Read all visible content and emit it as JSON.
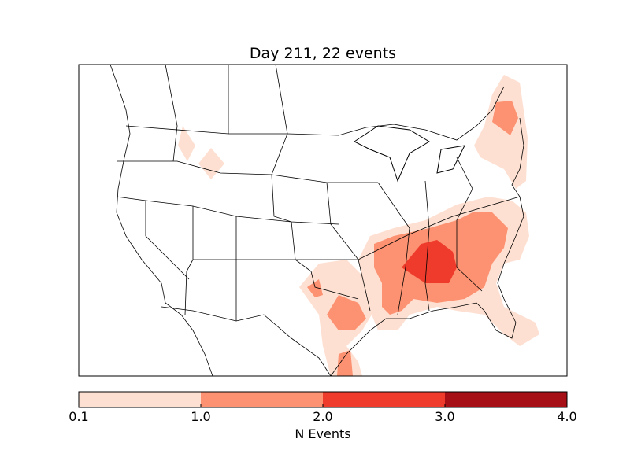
{
  "title": "Day 211, 22 events",
  "colorbar": {
    "label": "N Events",
    "ticks": [
      "0.1",
      "1.0",
      "2.0",
      "3.0",
      "4.0"
    ],
    "levels": [
      {
        "range": [
          0.1,
          1.0
        ],
        "color": "#fee0d2"
      },
      {
        "range": [
          1.0,
          2.0
        ],
        "color": "#fc9272"
      },
      {
        "range": [
          2.0,
          3.0
        ],
        "color": "#ef3b2c"
      },
      {
        "range": [
          3.0,
          4.0
        ],
        "color": "#a50f15"
      }
    ]
  }
}
